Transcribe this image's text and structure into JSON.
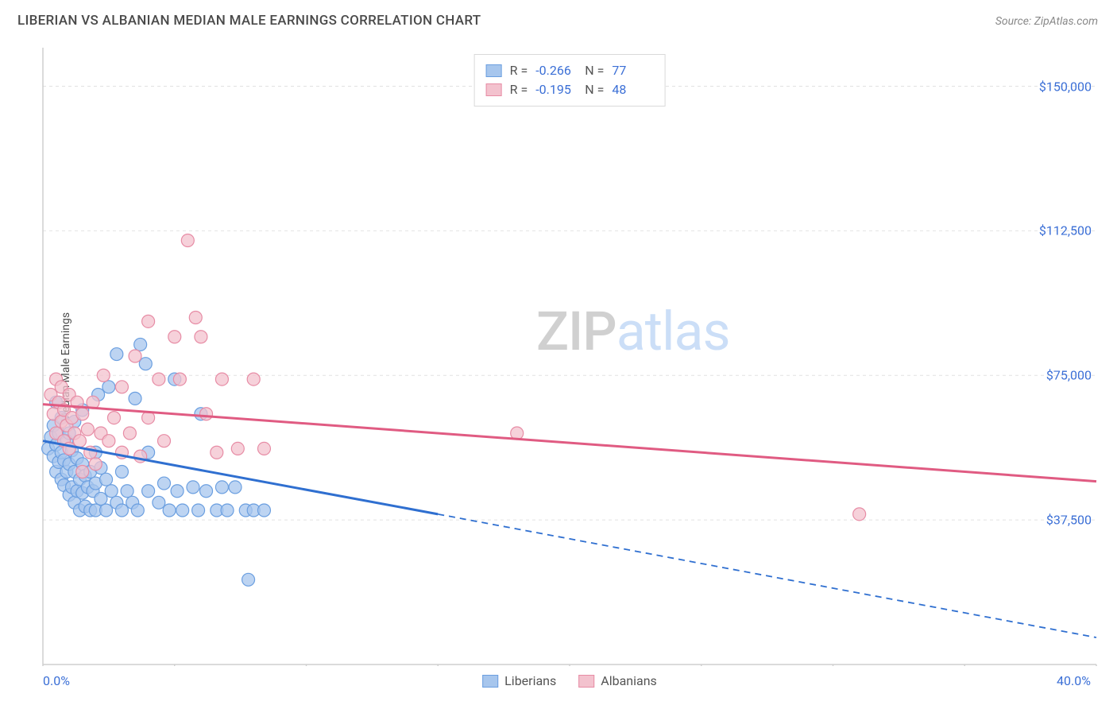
{
  "header": {
    "title": "LIBERIAN VS ALBANIAN MEDIAN MALE EARNINGS CORRELATION CHART",
    "source": "Source: ZipAtlas.com"
  },
  "chart": {
    "type": "scatter",
    "y_axis_label": "Median Male Earnings",
    "background_color": "#ffffff",
    "grid_color": "#e2e2e2",
    "axis_color": "#cfcfcf",
    "x_domain": [
      0,
      40
    ],
    "y_domain": [
      0,
      160000
    ],
    "x_tick_positions": [
      0,
      5,
      10,
      15,
      20,
      25,
      30,
      35,
      40
    ],
    "x_tick_labels_shown": {
      "0": "0.0%",
      "40": "40.0%"
    },
    "y_gridlines": [
      37500,
      75000,
      112500,
      150000
    ],
    "y_tick_labels": {
      "37500": "$37,500",
      "75000": "$75,000",
      "112500": "$112,500",
      "150000": "$150,000"
    },
    "series": [
      {
        "name": "Liberians",
        "fill_color": "#a7c6ed",
        "stroke_color": "#6b9fe0",
        "marker_radius": 8,
        "marker_opacity": 0.75,
        "trend": {
          "x1": 0,
          "y1": 58000,
          "x2_solid": 15,
          "y2_solid": 39000,
          "x2": 40,
          "y2": 7000,
          "color": "#2f6fd0",
          "width": 3
        },
        "r": "-0.266",
        "n": "77",
        "points": [
          [
            0.2,
            56000
          ],
          [
            0.3,
            59000
          ],
          [
            0.4,
            54000
          ],
          [
            0.4,
            62000
          ],
          [
            0.5,
            50000
          ],
          [
            0.5,
            57000
          ],
          [
            0.5,
            68000
          ],
          [
            0.6,
            52500
          ],
          [
            0.6,
            60000
          ],
          [
            0.7,
            48000
          ],
          [
            0.7,
            55000
          ],
          [
            0.7,
            64000
          ],
          [
            0.8,
            46500
          ],
          [
            0.8,
            53000
          ],
          [
            0.9,
            50000
          ],
          [
            0.9,
            58000
          ],
          [
            1.0,
            44000
          ],
          [
            1.0,
            52000
          ],
          [
            1.0,
            60000
          ],
          [
            1.1,
            46000
          ],
          [
            1.1,
            55500
          ],
          [
            1.2,
            42000
          ],
          [
            1.2,
            50000
          ],
          [
            1.2,
            63000
          ],
          [
            1.3,
            45000
          ],
          [
            1.3,
            53500
          ],
          [
            1.4,
            40000
          ],
          [
            1.4,
            48000
          ],
          [
            1.5,
            44500
          ],
          [
            1.5,
            52000
          ],
          [
            1.5,
            66000
          ],
          [
            1.6,
            41000
          ],
          [
            1.6,
            49000
          ],
          [
            1.7,
            46000
          ],
          [
            1.8,
            40000
          ],
          [
            1.8,
            50000
          ],
          [
            1.9,
            45000
          ],
          [
            2.0,
            40000
          ],
          [
            2.0,
            47000
          ],
          [
            2.0,
            55000
          ],
          [
            2.2,
            43000
          ],
          [
            2.2,
            51000
          ],
          [
            2.4,
            40000
          ],
          [
            2.4,
            48000
          ],
          [
            2.5,
            72000
          ],
          [
            2.6,
            45000
          ],
          [
            2.8,
            42000
          ],
          [
            2.8,
            80500
          ],
          [
            3.0,
            40000
          ],
          [
            3.0,
            50000
          ],
          [
            3.2,
            45000
          ],
          [
            3.4,
            42000
          ],
          [
            3.5,
            69000
          ],
          [
            3.6,
            40000
          ],
          [
            3.7,
            83000
          ],
          [
            3.9,
            78000
          ],
          [
            4.0,
            45000
          ],
          [
            4.0,
            55000
          ],
          [
            4.4,
            42000
          ],
          [
            4.6,
            47000
          ],
          [
            4.8,
            40000
          ],
          [
            5.0,
            74000
          ],
          [
            5.1,
            45000
          ],
          [
            5.3,
            40000
          ],
          [
            5.7,
            46000
          ],
          [
            5.9,
            40000
          ],
          [
            6.0,
            65000
          ],
          [
            6.2,
            45000
          ],
          [
            6.6,
            40000
          ],
          [
            6.8,
            46000
          ],
          [
            7.0,
            40000
          ],
          [
            7.3,
            46000
          ],
          [
            7.7,
            40000
          ],
          [
            8.0,
            40000
          ],
          [
            8.4,
            40000
          ],
          [
            7.8,
            22000
          ],
          [
            2.1,
            70000
          ]
        ]
      },
      {
        "name": "Albanians",
        "fill_color": "#f3c2ce",
        "stroke_color": "#e78ca5",
        "marker_radius": 8,
        "marker_opacity": 0.75,
        "trend": {
          "x1": 0,
          "y1": 67500,
          "x2_solid": 40,
          "y2_solid": 47500,
          "x2": 40,
          "y2": 47500,
          "color": "#e05b82",
          "width": 3
        },
        "r": "-0.195",
        "n": "48",
        "points": [
          [
            0.3,
            70000
          ],
          [
            0.4,
            65000
          ],
          [
            0.5,
            74000
          ],
          [
            0.5,
            60000
          ],
          [
            0.6,
            68000
          ],
          [
            0.7,
            63000
          ],
          [
            0.7,
            72000
          ],
          [
            0.8,
            58000
          ],
          [
            0.8,
            66000
          ],
          [
            0.9,
            62000
          ],
          [
            1.0,
            70000
          ],
          [
            1.0,
            56000
          ],
          [
            1.1,
            64000
          ],
          [
            1.2,
            60000
          ],
          [
            1.3,
            68000
          ],
          [
            1.4,
            58000
          ],
          [
            1.5,
            65000
          ],
          [
            1.5,
            50000
          ],
          [
            1.7,
            61000
          ],
          [
            1.8,
            55000
          ],
          [
            1.9,
            68000
          ],
          [
            2.0,
            52000
          ],
          [
            2.2,
            60000
          ],
          [
            2.3,
            75000
          ],
          [
            2.5,
            58000
          ],
          [
            2.7,
            64000
          ],
          [
            3.0,
            55000
          ],
          [
            3.0,
            72000
          ],
          [
            3.3,
            60000
          ],
          [
            3.5,
            80000
          ],
          [
            3.7,
            54000
          ],
          [
            4.0,
            64000
          ],
          [
            4.0,
            89000
          ],
          [
            4.4,
            74000
          ],
          [
            4.6,
            58000
          ],
          [
            5.0,
            85000
          ],
          [
            5.2,
            74000
          ],
          [
            5.8,
            90000
          ],
          [
            6.2,
            65000
          ],
          [
            6.6,
            55000
          ],
          [
            6.8,
            74000
          ],
          [
            7.4,
            56000
          ],
          [
            8.0,
            74000
          ],
          [
            8.4,
            56000
          ],
          [
            5.5,
            110000
          ],
          [
            6.0,
            85000
          ],
          [
            18.0,
            60000
          ],
          [
            31.0,
            39000
          ]
        ]
      }
    ],
    "watermark": {
      "part1": "ZIP",
      "part2": "atlas"
    },
    "legend_bottom": [
      "Liberians",
      "Albanians"
    ]
  }
}
